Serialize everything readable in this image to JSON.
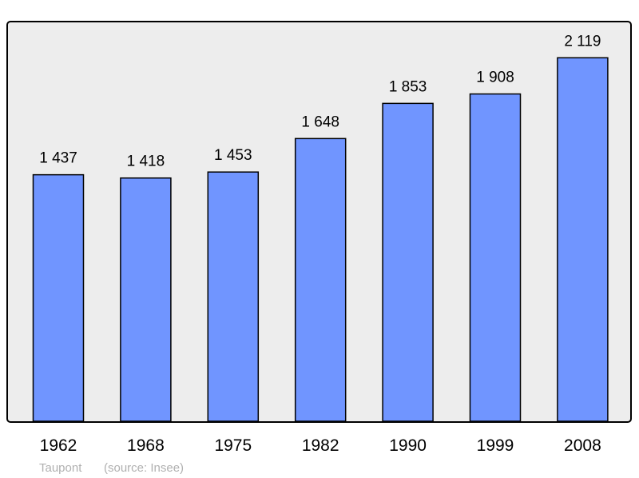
{
  "chart_data": {
    "type": "bar",
    "categories": [
      "1962",
      "1968",
      "1975",
      "1982",
      "1990",
      "1999",
      "2008"
    ],
    "values": [
      1437,
      1418,
      1453,
      1648,
      1853,
      1908,
      2119
    ],
    "value_labels": [
      "1 437",
      "1 418",
      "1 453",
      "1 648",
      "1 853",
      "1 908",
      "2 119"
    ],
    "ylim": [
      0,
      2330
    ],
    "grid": false,
    "bar_color": "#7095ff",
    "background_color": "#ededed"
  },
  "footer": {
    "place": "Taupont",
    "source": "(source: Insee)"
  }
}
